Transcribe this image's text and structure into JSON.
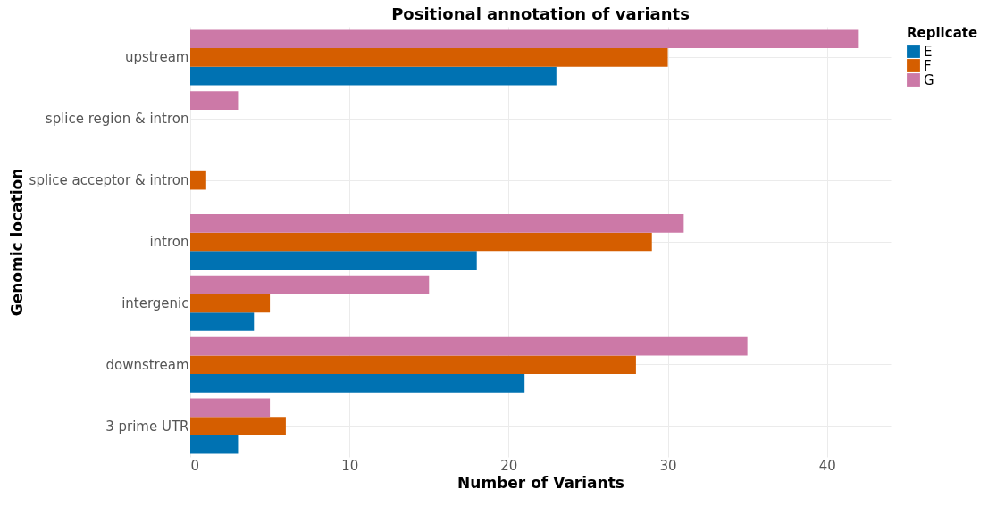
{
  "chart_data": {
    "type": "bar",
    "orientation": "horizontal",
    "title": "Positional annotation of variants",
    "xlabel": "Number of Variants",
    "ylabel": "Genomic location",
    "legend_title": "Replicate",
    "categories": [
      "upstream",
      "splice region & intron",
      "splice acceptor & intron",
      "intron",
      "intergenic",
      "downstream",
      "3 prime UTR"
    ],
    "series": [
      {
        "name": "E",
        "color": "#0072b2",
        "values": [
          23,
          null,
          null,
          18,
          4,
          21,
          3
        ]
      },
      {
        "name": "F",
        "color": "#d55e00",
        "values": [
          30,
          null,
          1,
          29,
          5,
          28,
          6
        ]
      },
      {
        "name": "G",
        "color": "#cc79a7",
        "values": [
          42,
          3,
          null,
          31,
          15,
          35,
          5
        ]
      }
    ],
    "xlim": [
      0,
      44
    ],
    "xticks": [
      0,
      10,
      20,
      30,
      40
    ],
    "grid": true,
    "legend": "right"
  }
}
